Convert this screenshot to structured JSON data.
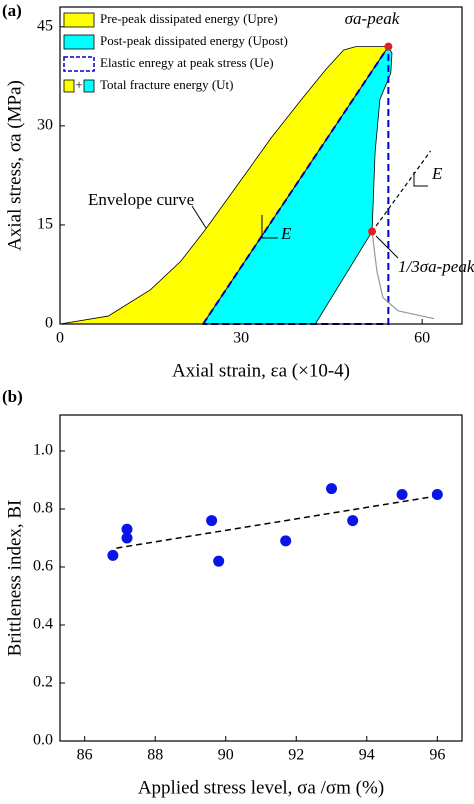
{
  "chart_data": [
    {
      "type": "area",
      "panel": "(a)",
      "xlabel": "Axial strain, εa (×10-4)",
      "ylabel": "Axial stress, σa (MPa)",
      "xlim": [
        0,
        66.6
      ],
      "ylim": [
        0,
        48
      ],
      "xticks": [
        0,
        30,
        60
      ],
      "yticks": [
        0,
        15,
        30,
        45
      ],
      "series": [
        {
          "name": "Pre-peak dissipated energy (Upre)",
          "color": "#ffff00",
          "style": "fill",
          "x": [
            0,
            8,
            15,
            20,
            24,
            30,
            35,
            40,
            44,
            47,
            49,
            54.4,
            23.7
          ],
          "y": [
            0,
            1.2,
            5.2,
            9.5,
            14.2,
            21.8,
            28.2,
            34,
            38.5,
            41.5,
            42,
            42,
            0
          ]
        },
        {
          "name": "Post-peak dissipated energy (Upost)",
          "color": "#00ffff",
          "style": "fill",
          "x": [
            23.7,
            54.4,
            55,
            54.8,
            53,
            52.2,
            51.7,
            42.3
          ],
          "y": [
            0,
            42,
            41,
            38,
            34,
            26,
            14,
            0
          ]
        },
        {
          "name": "Elastic enregy at peak stress (Ue)",
          "color": "#0000cc",
          "style": "dashed",
          "x": [
            23.7,
            54.4,
            54.4,
            23.7
          ],
          "y": [
            0,
            42,
            0,
            0
          ]
        }
      ],
      "legend_total": {
        "joiner": "+",
        "label": "Total fracture energy (Ut)"
      },
      "curves": [
        {
          "color": "#999999",
          "style": "solid",
          "x": [
            51.7,
            52.5,
            53.5,
            56,
            62
          ],
          "y": [
            14,
            8,
            4,
            2,
            0.8
          ]
        },
        {
          "color": "#000000",
          "style": "dashed",
          "x": [
            51.7,
            61.4
          ],
          "y": [
            14,
            26.2
          ]
        }
      ],
      "points": {
        "color": "#e02020",
        "x": [
          54.4,
          51.7
        ],
        "y": [
          42,
          14
        ]
      },
      "annotations": [
        "σa-peak",
        "Envelope curve",
        "E",
        "E",
        "1/3σa-peak"
      ]
    },
    {
      "type": "scatter",
      "panel": "(b)",
      "xlabel": "Applied stress level, σa /σm (%)",
      "ylabel": "Brittleness index, BI",
      "xlim": [
        85.3,
        96.7
      ],
      "ylim": [
        0,
        1.124
      ],
      "xticks": [
        86,
        88,
        90,
        92,
        94,
        96
      ],
      "yticks": [
        {
          "value": 0,
          "label": "0.0"
        },
        0.2,
        0.4,
        0.6,
        0.8,
        {
          "value": 1,
          "label": "1.0"
        }
      ],
      "series": [
        {
          "color": "#0a14e6",
          "x": [
            86.8,
            87.2,
            87.2,
            89.6,
            89.8,
            91.7,
            93.0,
            93.6,
            95.0,
            96.0
          ],
          "values": [
            0.64,
            0.73,
            0.7,
            0.76,
            0.62,
            0.69,
            0.87,
            0.76,
            0.85,
            0.85
          ]
        }
      ],
      "trend": {
        "color": "#000000",
        "x": [
          86.9,
          96
        ],
        "y": [
          0.665,
          0.845
        ]
      }
    }
  ]
}
